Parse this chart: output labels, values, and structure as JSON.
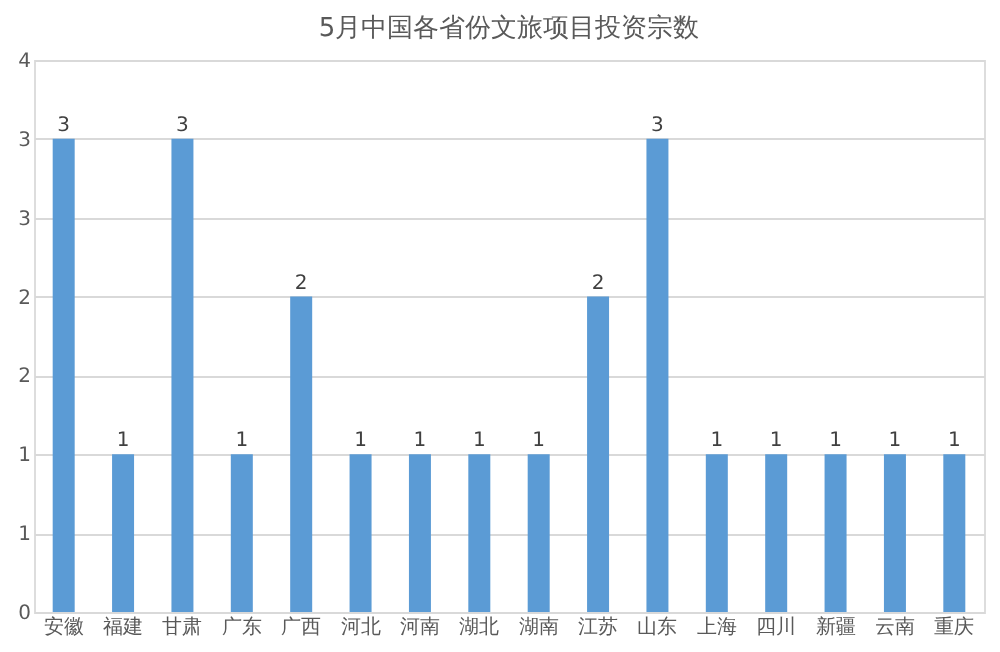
{
  "chart_data": {
    "type": "bar",
    "title": "5月中国各省份文旅项目投资宗数",
    "categories": [
      "安徽",
      "福建",
      "甘肃",
      "广东",
      "广西",
      "河北",
      "河南",
      "湖北",
      "湖南",
      "江苏",
      "山东",
      "上海",
      "四川",
      "新疆",
      "云南",
      "重庆"
    ],
    "values": [
      3,
      1,
      3,
      1,
      2,
      1,
      1,
      1,
      1,
      2,
      3,
      1,
      1,
      1,
      1,
      1
    ],
    "color": "#5b9bd5",
    "ylim": [
      0,
      3.5
    ],
    "yticks": [
      0,
      {
        "value": 0.5,
        "label": "1"
      },
      1,
      {
        "value": 1.5,
        "label": "2"
      },
      2,
      {
        "value": 2.5,
        "label": "3"
      },
      3,
      {
        "value": 3.5,
        "label": "4"
      }
    ],
    "grid": "y",
    "data_labels": true
  }
}
